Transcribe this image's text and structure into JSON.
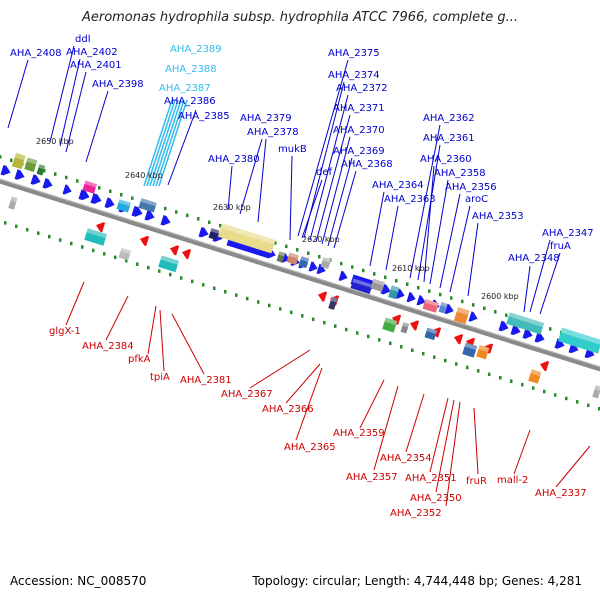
{
  "title": "Aeromonas hydrophila subsp. hydrophila ATCC 7966, complete g...",
  "footer": {
    "accession": "Accession: NC_008570",
    "summary": "Topology: circular; Length: 4,744,448 bp; Genes: 4,281"
  },
  "colors": {
    "forward_label": "#0000cc",
    "rna_label": "#33bbee",
    "reverse_label": "#cc0000",
    "forward_arrow": "#1a1aee",
    "reverse_arrow": "#ee1111",
    "backbone": "#8a8a8a",
    "tick": "#2a8a2a"
  },
  "kbp_ticks": [
    {
      "label": "2650 kbp"
    },
    {
      "label": "2640 kbp"
    },
    {
      "label": "2630 kbp"
    },
    {
      "label": "2620 kbp"
    },
    {
      "label": "2610 kbp"
    },
    {
      "label": "2600 kbp"
    }
  ],
  "forward_labels": [
    {
      "text": "AHA_2408",
      "type": "cds"
    },
    {
      "text": "ddl",
      "type": "cds"
    },
    {
      "text": "AHA_2402",
      "type": "cds"
    },
    {
      "text": "AHA_2401",
      "type": "cds"
    },
    {
      "text": "AHA_2398",
      "type": "cds"
    },
    {
      "text": "AHA_2389",
      "type": "rna"
    },
    {
      "text": "AHA_2388",
      "type": "rna"
    },
    {
      "text": "AHA_2387",
      "type": "rna"
    },
    {
      "text": "AHA_2386",
      "type": "cds"
    },
    {
      "text": "AHA_2385",
      "type": "cds"
    },
    {
      "text": "AHA_2380",
      "type": "cds"
    },
    {
      "text": "AHA_2379",
      "type": "cds"
    },
    {
      "text": "AHA_2378",
      "type": "cds"
    },
    {
      "text": "mukB",
      "type": "cds"
    },
    {
      "text": "AHA_2375",
      "type": "cds"
    },
    {
      "text": "AHA_2374",
      "type": "cds"
    },
    {
      "text": "AHA_2372",
      "type": "cds"
    },
    {
      "text": "AHA_2371",
      "type": "cds"
    },
    {
      "text": "AHA_2370",
      "type": "cds"
    },
    {
      "text": "AHA_2369",
      "type": "cds"
    },
    {
      "text": "AHA_2368",
      "type": "cds"
    },
    {
      "text": "def",
      "type": "cds"
    },
    {
      "text": "AHA_2364",
      "type": "cds"
    },
    {
      "text": "AHA_2363",
      "type": "cds"
    },
    {
      "text": "AHA_2362",
      "type": "cds"
    },
    {
      "text": "AHA_2361",
      "type": "cds"
    },
    {
      "text": "AHA_2360",
      "type": "cds"
    },
    {
      "text": "AHA_2358",
      "type": "cds"
    },
    {
      "text": "AHA_2356",
      "type": "cds"
    },
    {
      "text": "aroC",
      "type": "cds"
    },
    {
      "text": "AHA_2353",
      "type": "cds"
    },
    {
      "text": "AHA_2347",
      "type": "cds"
    },
    {
      "text": "fruA",
      "type": "cds"
    },
    {
      "text": "AHA_2348",
      "type": "cds"
    }
  ],
  "reverse_labels": [
    {
      "text": "glgX-1"
    },
    {
      "text": "AHA_2384"
    },
    {
      "text": "pfkA"
    },
    {
      "text": "tpiA"
    },
    {
      "text": "AHA_2381"
    },
    {
      "text": "AHA_2367"
    },
    {
      "text": "AHA_2366"
    },
    {
      "text": "AHA_2365"
    },
    {
      "text": "AHA_2359"
    },
    {
      "text": "AHA_2357"
    },
    {
      "text": "AHA_2354"
    },
    {
      "text": "AHA_2351"
    },
    {
      "text": "AHA_2350"
    },
    {
      "text": "AHA_2352"
    },
    {
      "text": "fruR"
    },
    {
      "text": "mall-2"
    },
    {
      "text": "AHA_2337"
    }
  ]
}
